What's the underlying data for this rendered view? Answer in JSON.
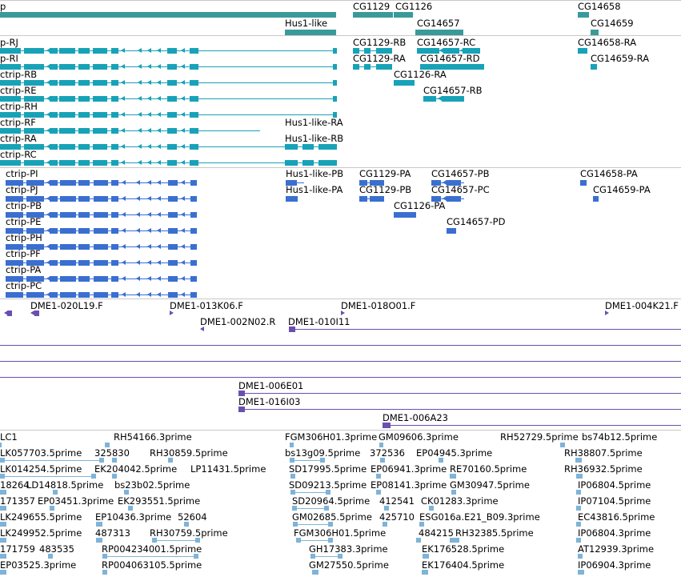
{
  "colors": {
    "gene": "#3a9a9a",
    "transcript_a": "#17a2b8",
    "transcript_b": "#3a6fd0",
    "clone": "#6b4fb0",
    "est": "#7fb3d8",
    "separator": "#c8c8c8"
  },
  "tracks": {
    "genes": {
      "labels": [
        "p",
        "CG1129",
        "CG1126",
        "CG14658",
        "Hus1-like",
        "CG14657",
        "CG14659"
      ]
    },
    "transcripts_a": {
      "labels": [
        "p-RJ",
        "p-RI",
        "ctrip-RB",
        "ctrip-RE",
        "ctrip-RH",
        "ctrip-RF",
        "ctrip-RA",
        "ctrip-RC",
        "CG1129-RB",
        "CG14657-RC",
        "CG14658-RA",
        "CG1129-RA",
        "CG14657-RD",
        "CG14659-RA",
        "CG1126-RA",
        "CG14657-RB",
        "Hus1-like-RA",
        "Hus1-like-RB"
      ]
    },
    "transcripts_b": {
      "labels": [
        "ctrip-PI",
        "ctrip-PJ",
        "ctrip-PB",
        "ctrip-PE",
        "ctrip-PH",
        "ctrip-PF",
        "ctrip-PA",
        "ctrip-PC",
        "Hus1-like-PB",
        "CG1129-PA",
        "CG14657-PB",
        "CG14658-PA",
        "Hus1-like-PA",
        "CG1129-PB",
        "CG14657-PC",
        "CG14659-PA",
        "CG1126-PA",
        "CG14657-PD"
      ]
    },
    "clones": {
      "labels": [
        "DME1-020L19.F",
        "DME1-013K06.F",
        "DME1-018O01.F",
        "DME1-004K21.F",
        "DME1-002N02.R",
        "DME1-010I11",
        "DME1-006E01",
        "DME1-016I03",
        "DME1-006A23"
      ]
    },
    "ests": {
      "labels": [
        "LC1",
        "RH54166.3prime",
        "FGM306H01.3prime",
        "GM09606.3prime",
        "RH52729.5prime",
        "bs74b12.5prime",
        "LK057703.5prime",
        "325830",
        "RH30859.5prime",
        "bs13g09.5prime",
        "372536",
        "EP04945.3prime",
        "RH38807.5prime",
        "LK014254.5prime",
        "EK204042.5prime",
        "LP11431.5prime",
        "SD17995.5prime",
        "EP06941.3prime",
        "RE70160.5prime",
        "RH36932.5prime",
        "18264",
        "LD14818.5prime",
        "bs23b02.5prime",
        "SD09213.5prime",
        "EP08141.3prime",
        "GM30947.5prime",
        "IP06804.5prime",
        "171357",
        "EP03451.3prime",
        "EK293551.5prime",
        "SD20964.5prime",
        "412541",
        "CK01283.3prime",
        "IP07104.5prime",
        "LK249655.5prime",
        "EP10436.3prime",
        "52604",
        "GM02685.5prime",
        "425710",
        "ESG016a.E21_B09.3prime",
        "EC43816.5prime",
        "LK249952.5prime",
        "487313",
        "RH30759.5prime",
        "FGM306H01.5prime",
        "484215",
        "RH32385.5prime",
        "IP06804.3prime",
        "171759",
        "483535",
        "RP004234001.5prime",
        "GH17383.3prime",
        "EK176528.5prime",
        "AT12939.3prime",
        "EP03525.3prime",
        "RP004063105.5prime",
        "GM27550.5prime",
        "EK176404.5prime",
        "IP06904.3prime"
      ]
    }
  }
}
